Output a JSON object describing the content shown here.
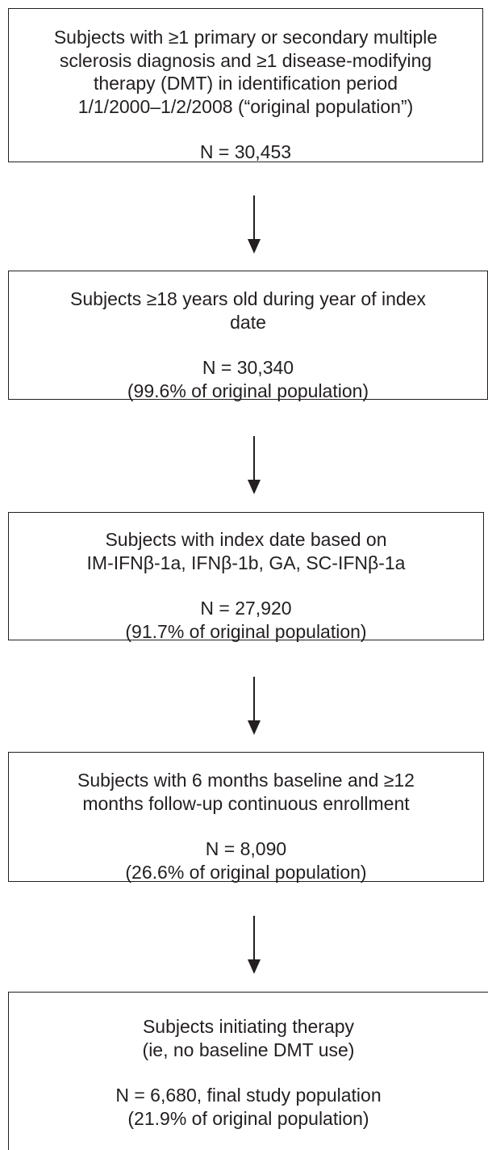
{
  "steps": [
    {
      "lines": [
        "Subjects with ≥1 primary or secondary multiple",
        "sclerosis diagnosis and ≥1 disease-modifying",
        "therapy (DMT) in identification period",
        "1/1/2000–1/2/2008 (“original population”)"
      ],
      "n": "N = 30,453",
      "pct": ""
    },
    {
      "lines": [
        "Subjects ≥18 years old during year of index",
        "date"
      ],
      "n": "N = 30,340",
      "pct": "(99.6% of original population)"
    },
    {
      "lines": [
        "Subjects with index date based on",
        "IM-IFNβ-1a, IFNβ-1b, GA, SC-IFNβ-1a"
      ],
      "n": "N = 27,920",
      "pct": "(91.7% of original population)"
    },
    {
      "lines": [
        "Subjects with 6 months baseline and ≥12",
        "months follow-up continuous enrollment"
      ],
      "n": "N = 8,090",
      "pct": "(26.6% of original population)"
    },
    {
      "lines": [
        "Subjects initiating therapy",
        "(ie, no baseline DMT use)"
      ],
      "n": "N = 6,680, final study population",
      "pct": "(21.9% of original population)"
    }
  ]
}
